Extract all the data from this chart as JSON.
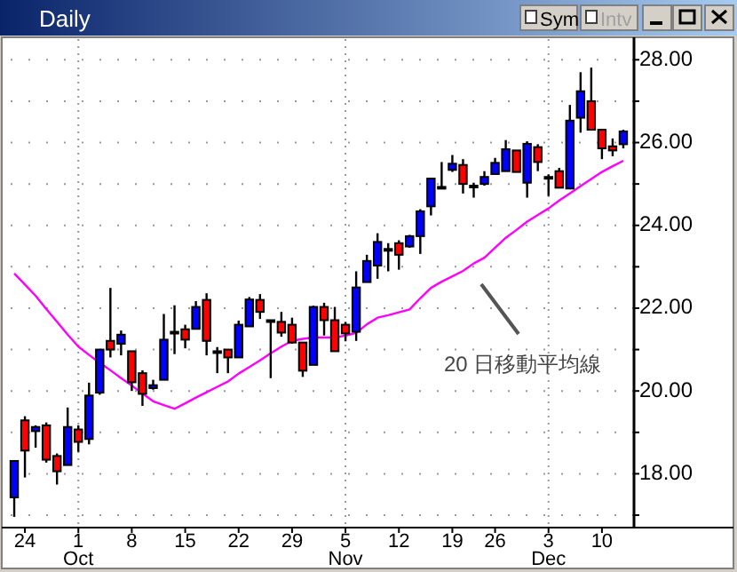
{
  "chart_data": {
    "type": "candlestick",
    "title": "Daily",
    "categories": [
      null,
      "24",
      null,
      null,
      null,
      null,
      "1\nOct",
      null,
      null,
      null,
      null,
      "8",
      null,
      null,
      null,
      null,
      "15",
      null,
      null,
      null,
      null,
      "22",
      null,
      null,
      null,
      null,
      "29",
      null,
      null,
      null,
      null,
      "5\nNov",
      null,
      null,
      null,
      null,
      "12",
      null,
      null,
      null,
      null,
      "19",
      null,
      null,
      null,
      "26",
      null,
      null,
      null,
      null,
      "3\nDec",
      null,
      null,
      null,
      null,
      "10",
      null,
      null
    ],
    "ohlc": [
      [
        17.43,
        18.31,
        16.96,
        18.31
      ],
      [
        19.29,
        19.39,
        17.91,
        18.56
      ],
      [
        19.03,
        19.17,
        18.63,
        19.13
      ],
      [
        19.17,
        19.24,
        18.27,
        18.34
      ],
      [
        18.43,
        18.49,
        17.74,
        18.06
      ],
      [
        18.21,
        19.6,
        18.21,
        19.13
      ],
      [
        19.07,
        19.17,
        18.53,
        18.77
      ],
      [
        18.84,
        20.2,
        18.71,
        19.89
      ],
      [
        19.96,
        21.0,
        19.91,
        21.0
      ],
      [
        21.21,
        22.49,
        20.81,
        21.0
      ],
      [
        21.14,
        21.46,
        20.86,
        21.36
      ],
      [
        20.96,
        20.96,
        20.0,
        20.21
      ],
      [
        20.43,
        20.5,
        19.64,
        19.93
      ],
      [
        20.07,
        20.27,
        20.03,
        20.14
      ],
      [
        20.27,
        21.86,
        20.27,
        21.24
      ],
      [
        21.43,
        22.07,
        20.89,
        21.43
      ],
      [
        21.49,
        21.6,
        21.03,
        21.24
      ],
      [
        21.5,
        22.17,
        21.5,
        22.03
      ],
      [
        22.2,
        22.36,
        20.86,
        21.21
      ],
      [
        20.96,
        21.06,
        20.43,
        20.96
      ],
      [
        21.0,
        21.0,
        20.43,
        20.81
      ],
      [
        20.81,
        21.7,
        20.81,
        21.6
      ],
      [
        21.56,
        22.27,
        21.56,
        22.21
      ],
      [
        22.2,
        22.34,
        21.74,
        21.91
      ],
      [
        21.71,
        21.71,
        20.31,
        21.71
      ],
      [
        21.67,
        21.91,
        21.31,
        21.41
      ],
      [
        21.6,
        21.77,
        21.14,
        21.17
      ],
      [
        21.17,
        21.17,
        20.34,
        20.49
      ],
      [
        20.63,
        22.06,
        20.63,
        22.03
      ],
      [
        22.03,
        22.13,
        21.34,
        21.71
      ],
      [
        21.71,
        22.03,
        20.96,
        20.96
      ],
      [
        21.6,
        21.67,
        21.2,
        21.39
      ],
      [
        21.43,
        22.89,
        21.21,
        22.5
      ],
      [
        22.63,
        23.29,
        22.63,
        23.14
      ],
      [
        23.03,
        23.81,
        22.71,
        23.6
      ],
      [
        23.43,
        23.57,
        22.89,
        23.43
      ],
      [
        23.57,
        23.64,
        22.93,
        23.29
      ],
      [
        23.49,
        23.77,
        23.46,
        23.74
      ],
      [
        23.74,
        24.39,
        23.31,
        24.34
      ],
      [
        24.46,
        25.13,
        24.24,
        25.13
      ],
      [
        24.93,
        25.53,
        24.93,
        24.93
      ],
      [
        25.34,
        25.7,
        25.29,
        25.49
      ],
      [
        25.46,
        25.6,
        24.77,
        25.0
      ],
      [
        24.96,
        25.03,
        24.67,
        24.96
      ],
      [
        25.0,
        25.31,
        24.96,
        25.17
      ],
      [
        25.24,
        25.63,
        25.23,
        25.51
      ],
      [
        25.31,
        26.06,
        25.31,
        25.84
      ],
      [
        25.81,
        25.81,
        25.29,
        25.29
      ],
      [
        25.03,
        26.03,
        24.67,
        25.97
      ],
      [
        25.89,
        25.96,
        25.31,
        25.53
      ],
      [
        25.17,
        25.23,
        24.71,
        25.17
      ],
      [
        25.31,
        25.39,
        24.91,
        24.91
      ],
      [
        24.89,
        26.91,
        24.89,
        26.53
      ],
      [
        26.6,
        27.7,
        26.24,
        27.24
      ],
      [
        27.0,
        27.81,
        26.29,
        26.31
      ],
      [
        26.31,
        26.31,
        25.6,
        25.86
      ],
      [
        25.91,
        26.1,
        25.67,
        25.81
      ],
      [
        25.96,
        26.31,
        25.86,
        26.27
      ]
    ],
    "colors": [
      "#0000ff",
      "#ff0000",
      "#0000ff",
      "#ff0000",
      "#ff0000",
      "#0000ff",
      "#ff0000",
      "#0000ff",
      "#0000ff",
      "#ff0000",
      "#0000ff",
      "#ff0000",
      "#ff0000",
      "#0000ff",
      "#0000ff",
      "#000000",
      "#ff0000",
      "#0000ff",
      "#ff0000",
      "#000000",
      "#ff0000",
      "#0000ff",
      "#0000ff",
      "#ff0000",
      "#000000",
      "#ff0000",
      "#ff0000",
      "#ff0000",
      "#0000ff",
      "#ff0000",
      "#ff0000",
      "#ff0000",
      "#0000ff",
      "#0000ff",
      "#0000ff",
      "#000000",
      "#ff0000",
      "#0000ff",
      "#0000ff",
      "#0000ff",
      "#000000",
      "#0000ff",
      "#ff0000",
      "#000000",
      "#0000ff",
      "#0000ff",
      "#0000ff",
      "#ff0000",
      "#0000ff",
      "#ff0000",
      "#000000",
      "#ff0000",
      "#0000ff",
      "#0000ff",
      "#ff0000",
      "#ff0000",
      "#ff0000",
      "#0000ff"
    ],
    "series": [
      {
        "type": "line",
        "color": "#ff00ff",
        "values": [
          22.84,
          22.57,
          22.3,
          21.98,
          21.67,
          21.36,
          21.07,
          20.87,
          20.68,
          20.5,
          20.31,
          20.13,
          19.94,
          19.75,
          19.66,
          19.57,
          19.7,
          19.84,
          19.97,
          20.1,
          20.23,
          20.42,
          20.58,
          20.74,
          20.91,
          21.07,
          21.21,
          21.26,
          21.29,
          21.29,
          21.29,
          21.34,
          21.4,
          21.61,
          21.77,
          21.83,
          21.9,
          21.97,
          22.24,
          22.49,
          22.64,
          22.77,
          22.9,
          23.08,
          23.22,
          23.46,
          23.7,
          23.89,
          24.09,
          24.25,
          24.41,
          24.6,
          24.77,
          24.95,
          25.12,
          25.29,
          25.43,
          25.56
        ]
      }
    ],
    "ylim": [
      16.7,
      28.5
    ],
    "yticks": [
      {
        "value": 17,
        "label": null
      },
      {
        "value": 18,
        "label": "18.00"
      },
      {
        "value": 19,
        "label": null
      },
      {
        "value": 20,
        "label": "20.00"
      },
      {
        "value": 21,
        "label": null
      },
      {
        "value": 22,
        "label": "22.00"
      },
      {
        "value": 23,
        "label": null
      },
      {
        "value": 24,
        "label": "24.00"
      },
      {
        "value": 25,
        "label": null
      },
      {
        "value": 26,
        "label": "26.00"
      },
      {
        "value": 27,
        "label": null
      },
      {
        "value": 28,
        "label": "28.00"
      }
    ],
    "grid": true,
    "annotations": [
      "20 日移動平均線",
      "Sym",
      "Intv"
    ]
  }
}
